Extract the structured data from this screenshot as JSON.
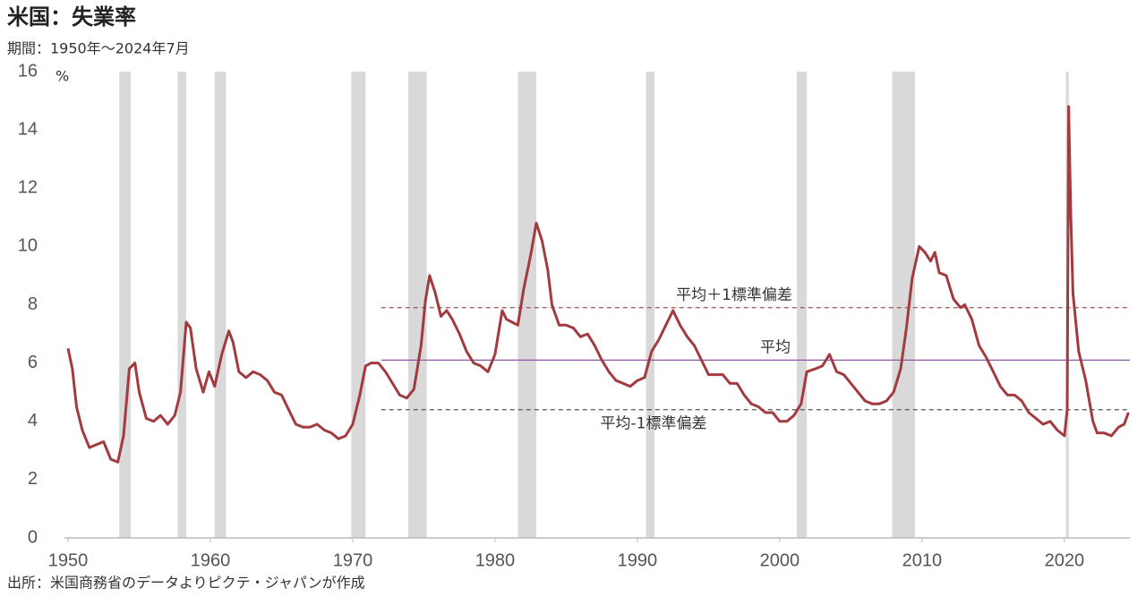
{
  "chart_data": {
    "type": "line",
    "title": "米国：失業率",
    "subtitle": "期間：1950年～2024年7月",
    "y_unit": "%",
    "source": "出所：米国商務省のデータよりピクテ・ジャパンが作成",
    "color": "#a23b3f",
    "x": [
      1950.0,
      1950.3,
      1950.6,
      1951.0,
      1951.5,
      1952.0,
      1952.5,
      1953.0,
      1953.5,
      1953.9,
      1954.3,
      1954.7,
      1955.0,
      1955.5,
      1956.0,
      1956.5,
      1957.0,
      1957.5,
      1957.9,
      1958.3,
      1958.6,
      1959.0,
      1959.5,
      1959.9,
      1960.3,
      1960.8,
      1961.3,
      1961.6,
      1962.0,
      1962.5,
      1963.0,
      1963.5,
      1964.0,
      1964.5,
      1965.0,
      1965.5,
      1966.0,
      1966.5,
      1967.0,
      1967.5,
      1968.0,
      1968.5,
      1969.0,
      1969.5,
      1970.0,
      1970.5,
      1970.9,
      1971.3,
      1971.8,
      1972.3,
      1972.8,
      1973.3,
      1973.8,
      1974.3,
      1974.8,
      1975.1,
      1975.4,
      1975.8,
      1976.2,
      1976.6,
      1977.0,
      1977.5,
      1978.0,
      1978.5,
      1979.0,
      1979.5,
      1980.0,
      1980.5,
      1980.8,
      1981.2,
      1981.6,
      1982.0,
      1982.5,
      1982.9,
      1983.3,
      1983.7,
      1984.0,
      1984.5,
      1985.0,
      1985.5,
      1986.0,
      1986.5,
      1987.0,
      1987.5,
      1988.0,
      1988.5,
      1989.0,
      1989.5,
      1990.0,
      1990.5,
      1991.0,
      1991.5,
      1992.0,
      1992.5,
      1993.0,
      1993.5,
      1994.0,
      1994.5,
      1995.0,
      1995.5,
      1996.0,
      1996.5,
      1997.0,
      1997.5,
      1998.0,
      1998.5,
      1999.0,
      1999.5,
      2000.0,
      2000.5,
      2001.0,
      2001.5,
      2001.9,
      2002.5,
      2003.0,
      2003.5,
      2004.0,
      2004.5,
      2005.0,
      2005.5,
      2006.0,
      2006.5,
      2007.0,
      2007.5,
      2008.0,
      2008.5,
      2008.9,
      2009.3,
      2009.8,
      2010.2,
      2010.6,
      2010.9,
      2011.2,
      2011.7,
      2012.2,
      2012.7,
      2013.0,
      2013.5,
      2014.0,
      2014.5,
      2015.0,
      2015.5,
      2016.0,
      2016.5,
      2017.0,
      2017.5,
      2018.0,
      2018.5,
      2019.0,
      2019.5,
      2020.0,
      2020.2,
      2020.3,
      2020.45,
      2020.6,
      2021.0,
      2021.5,
      2022.0,
      2022.3,
      2022.8,
      2023.3,
      2023.8,
      2024.2,
      2024.5
    ],
    "values": [
      6.5,
      5.8,
      4.5,
      3.7,
      3.1,
      3.2,
      3.3,
      2.7,
      2.6,
      3.5,
      5.8,
      6.0,
      5.0,
      4.1,
      4.0,
      4.2,
      3.9,
      4.2,
      5.0,
      7.4,
      7.2,
      5.8,
      5.0,
      5.7,
      5.2,
      6.3,
      7.1,
      6.7,
      5.7,
      5.5,
      5.7,
      5.6,
      5.4,
      5.0,
      4.9,
      4.4,
      3.9,
      3.8,
      3.8,
      3.9,
      3.7,
      3.6,
      3.4,
      3.5,
      3.9,
      4.9,
      5.9,
      6.0,
      6.0,
      5.7,
      5.3,
      4.9,
      4.8,
      5.1,
      6.6,
      8.1,
      9.0,
      8.4,
      7.6,
      7.8,
      7.5,
      7.0,
      6.4,
      6.0,
      5.9,
      5.7,
      6.3,
      7.8,
      7.5,
      7.4,
      7.3,
      8.5,
      9.7,
      10.8,
      10.2,
      9.2,
      8.0,
      7.3,
      7.3,
      7.2,
      6.9,
      7.0,
      6.6,
      6.1,
      5.7,
      5.4,
      5.3,
      5.2,
      5.4,
      5.5,
      6.4,
      6.8,
      7.3,
      7.8,
      7.3,
      6.9,
      6.6,
      6.1,
      5.6,
      5.6,
      5.6,
      5.3,
      5.3,
      4.9,
      4.6,
      4.5,
      4.3,
      4.3,
      4.0,
      4.0,
      4.2,
      4.6,
      5.7,
      5.8,
      5.9,
      6.3,
      5.7,
      5.6,
      5.3,
      5.0,
      4.7,
      4.6,
      4.6,
      4.7,
      5.0,
      5.8,
      7.2,
      8.9,
      10.0,
      9.8,
      9.5,
      9.8,
      9.1,
      9.0,
      8.2,
      7.9,
      8.0,
      7.5,
      6.6,
      6.2,
      5.7,
      5.2,
      4.9,
      4.9,
      4.7,
      4.3,
      4.1,
      3.9,
      4.0,
      3.7,
      3.5,
      4.4,
      14.8,
      11.1,
      8.4,
      6.4,
      5.4,
      4.0,
      3.6,
      3.6,
      3.5,
      3.8,
      3.9,
      4.3
    ],
    "recessions": [
      [
        1953.6,
        1954.4
      ],
      [
        1957.7,
        1958.3
      ],
      [
        1960.3,
        1961.1
      ],
      [
        1969.9,
        1970.9
      ],
      [
        1973.9,
        1975.2
      ],
      [
        1981.6,
        1982.9
      ],
      [
        1990.6,
        1991.2
      ],
      [
        2001.2,
        2001.9
      ],
      [
        2007.9,
        2009.5
      ],
      [
        2020.1,
        2020.3
      ]
    ],
    "recession_color": "#d9d9d9",
    "reference_lines": [
      {
        "label": "平均＋1標準偏差",
        "value": 7.9,
        "style": "dashed",
        "color": "#a05050"
      },
      {
        "label": "平均",
        "value": 6.1,
        "style": "solid",
        "color": "#8a5a9a"
      },
      {
        "label": "平均-1標準偏差",
        "value": 4.4,
        "style": "dashed",
        "color": "#555555"
      }
    ],
    "reference_from": 1972,
    "xlim": [
      1950,
      2024.6
    ],
    "xticks": [
      1950,
      1960,
      1970,
      1980,
      1990,
      2000,
      2010,
      2020
    ],
    "ylim": [
      0,
      16
    ],
    "yticks": [
      0,
      2,
      4,
      6,
      8,
      10,
      12,
      14,
      16
    ],
    "grid": false
  }
}
